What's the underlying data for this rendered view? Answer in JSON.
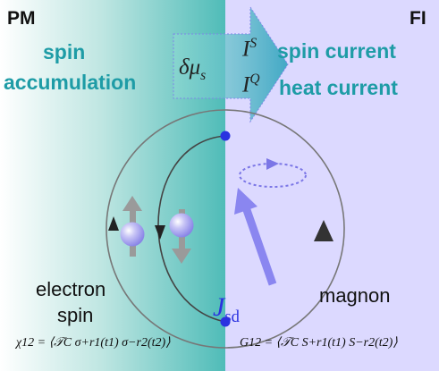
{
  "regions": {
    "left": "PM",
    "right": "FI"
  },
  "left_text": {
    "line1": "spin",
    "line2": "accumulation"
  },
  "arrow": {
    "mu": "δμ",
    "mu_sub": "s",
    "is": "I",
    "is_sup": "S",
    "iq": "I",
    "iq_sup": "Q"
  },
  "right_text": {
    "line1": "spin current",
    "line2": "heat current"
  },
  "coupling": {
    "symbol": "J",
    "sub": "sd"
  },
  "bottom_labels": {
    "electron_line1": "electron",
    "electron_line2": "spin",
    "magnon": "magnon"
  },
  "formulas": {
    "left": "χ12 = ⟨𝒯C σ+r1(t1) σ−r2(t2)⟩",
    "right": "G12 = ⟨𝒯C S+r1(t1) S−r2(t2)⟩"
  },
  "colors": {
    "pm_teal": "#5cc3bf",
    "fi_lavender": "#dcd9ff",
    "accent_teal": "#1e9ca6",
    "vertex_blue": "#2a32e0",
    "magnon_arrow": "#8a86f0",
    "spin_ball": "#9c98ee"
  }
}
